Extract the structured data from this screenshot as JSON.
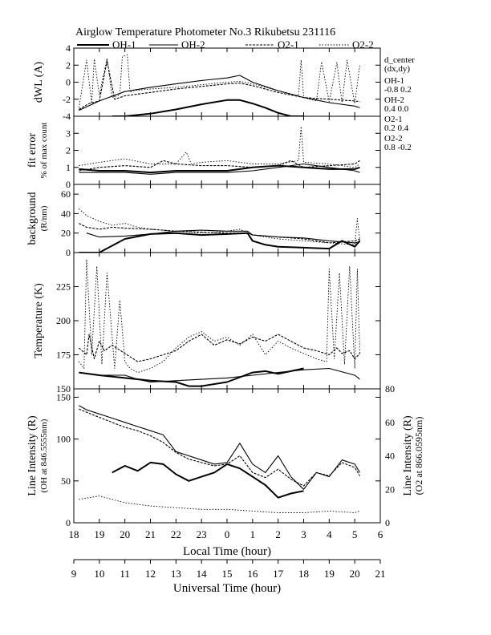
{
  "title": "Airglow Temperature Photometer No.3  Rikubetsu    231116",
  "legend": [
    {
      "name": "OH-1",
      "style": "solid-thick"
    },
    {
      "name": "OH-2",
      "style": "solid-thin"
    },
    {
      "name": "O2-1",
      "style": "dashed"
    },
    {
      "name": "O2-2",
      "style": "dotted"
    }
  ],
  "side_info": {
    "header": "d_center",
    "subheader": "(dx,dy)",
    "entries": [
      {
        "label": "OH-1",
        "value": "-0.8  0.2"
      },
      {
        "label": "OH-2",
        "value": "0.4   0.0"
      },
      {
        "label": "O2-1",
        "value": "0.2   0.4"
      },
      {
        "label": "O2-2",
        "value": "0.8   -0.2"
      }
    ]
  },
  "chart_data": {
    "type": "line",
    "x_unit": "Universal Time (hour)",
    "xlim": [
      9,
      21
    ],
    "xlabel_bottom": "Universal Time (hour)",
    "xlabel_top": "Local Time (hour)",
    "ut_ticks": [
      "9",
      "10",
      "11",
      "12",
      "13",
      "14",
      "15",
      "16",
      "17",
      "18",
      "19",
      "20",
      "21"
    ],
    "lt_ticks": [
      "18",
      "19",
      "20",
      "21",
      "22",
      "23",
      "0",
      "1",
      "2",
      "3",
      "4",
      "5",
      "6"
    ],
    "panels": [
      {
        "id": "dwl",
        "ylabel": [
          "dWL (A)"
        ],
        "ylim": [
          -4,
          4
        ],
        "yticks": [
          "-4",
          "-2",
          "0",
          "2",
          "4"
        ],
        "series": [
          {
            "name": "OH-1",
            "x": [
              10.5,
              11.0,
              12.0,
              13.0,
              14.0,
              15.0,
              15.5,
              16.0,
              16.5,
              17.0,
              17.5,
              18.0
            ],
            "y": [
              -4.0,
              -4.0,
              -3.7,
              -3.2,
              -2.6,
              -2.1,
              -2.1,
              -2.5,
              -3.0,
              -3.6,
              -4.0,
              -4.0
            ]
          },
          {
            "name": "OH-2",
            "x": [
              9.2,
              10.0,
              11.0,
              12.0,
              13.0,
              14.0,
              15.0,
              15.5,
              16.0,
              17.0,
              18.0,
              19.0,
              20.0,
              20.2
            ],
            "y": [
              -3.3,
              -2.2,
              -1.1,
              -0.6,
              -0.2,
              0.2,
              0.5,
              0.8,
              0.0,
              -1.0,
              -1.8,
              -2.4,
              -2.8,
              -3.0
            ]
          },
          {
            "name": "O2-1",
            "x": [
              9.2,
              9.6,
              10.0,
              10.3,
              10.6,
              11.0,
              12.0,
              13.0,
              14.0,
              15.0,
              15.5,
              16.0,
              17.0,
              18.0,
              19.0,
              20.0,
              20.2
            ],
            "y": [
              -3.2,
              -2.5,
              -2.2,
              2.5,
              -2.0,
              -1.6,
              -1.2,
              -0.8,
              -0.5,
              -0.2,
              -0.1,
              -0.4,
              -1.2,
              -1.8,
              -2.0,
              -2.2,
              -2.3
            ]
          },
          {
            "name": "O2-2",
            "x": [
              9.2,
              9.5,
              9.7,
              9.8,
              10.0,
              10.3,
              10.5,
              10.8,
              10.9,
              11.1,
              11.2,
              11.3,
              12.0,
              13.0,
              14.0,
              15.0,
              15.5,
              16.0,
              17.0,
              17.8,
              17.9,
              18.0,
              18.5,
              18.7,
              19.0,
              19.3,
              19.5,
              19.7,
              20.0,
              20.2
            ],
            "y": [
              -3.0,
              2.6,
              -2.5,
              2.7,
              -1.5,
              2.8,
              -1.8,
              -1.5,
              3.0,
              3.2,
              -1.2,
              -1.0,
              -0.8,
              -0.6,
              -0.3,
              0.0,
              0.1,
              -0.2,
              -1.0,
              -1.6,
              2.6,
              -1.8,
              -2.2,
              2.4,
              -2.3,
              2.3,
              -2.4,
              2.6,
              -2.5,
              2.0
            ]
          }
        ]
      },
      {
        "id": "fit",
        "ylabel": [
          "fit error",
          "% of max count"
        ],
        "ylim": [
          0,
          4
        ],
        "yticks": [
          "0",
          "1",
          "2",
          "3"
        ],
        "series": [
          {
            "name": "OH-1",
            "x": [
              9.2,
              10.0,
              11.0,
              12.0,
              13.0,
              14.0,
              15.0,
              16.0,
              17.0,
              18.0,
              19.0,
              20.0,
              20.2
            ],
            "y": [
              0.9,
              0.8,
              0.8,
              0.7,
              0.8,
              0.8,
              0.8,
              1.0,
              1.1,
              1.0,
              0.9,
              0.9,
              1.0
            ]
          },
          {
            "name": "OH-2",
            "x": [
              9.2,
              10.0,
              11.0,
              12.0,
              13.0,
              14.0,
              15.0,
              16.0,
              17.0,
              18.0,
              19.0,
              20.0,
              20.2
            ],
            "y": [
              0.7,
              0.7,
              0.7,
              0.6,
              0.7,
              0.7,
              0.7,
              0.8,
              1.0,
              1.2,
              1.0,
              0.8,
              0.7
            ]
          },
          {
            "name": "O2-1",
            "x": [
              9.2,
              10.0,
              11.0,
              12.0,
              12.5,
              13.0,
              14.0,
              15.0,
              16.0,
              17.0,
              17.5,
              18.0,
              19.0,
              20.0,
              20.2
            ],
            "y": [
              0.8,
              1.0,
              1.1,
              1.0,
              1.4,
              1.2,
              1.1,
              1.1,
              1.0,
              1.1,
              1.4,
              1.0,
              1.1,
              1.2,
              1.4
            ]
          },
          {
            "name": "O2-2",
            "x": [
              9.2,
              10.0,
              11.0,
              12.0,
              13.0,
              13.4,
              13.6,
              14.0,
              15.0,
              16.0,
              17.0,
              17.8,
              17.9,
              18.0,
              19.0,
              20.0,
              20.2
            ],
            "y": [
              1.1,
              1.3,
              1.5,
              1.2,
              1.2,
              1.9,
              1.2,
              1.3,
              1.4,
              1.2,
              1.2,
              1.4,
              3.4,
              1.3,
              1.2,
              1.0,
              1.2
            ]
          }
        ]
      },
      {
        "id": "bg",
        "ylabel": [
          "background",
          "(R/nm)"
        ],
        "ylim": [
          0,
          70
        ],
        "yticks": [
          "0",
          "20",
          "40",
          "60"
        ],
        "series": [
          {
            "name": "OH-1",
            "x": [
              9.2,
              10.0,
              11.0,
              12.0,
              13.0,
              14.0,
              15.0,
              15.8,
              16.0,
              16.5,
              17.0,
              18.0,
              19.0,
              19.5,
              20.0,
              20.2
            ],
            "y": [
              0,
              0,
              14,
              19,
              20,
              18,
              19,
              20,
              12,
              8,
              6,
              5,
              4,
              12,
              6,
              12
            ]
          },
          {
            "name": "OH-2",
            "x": [
              9.5,
              10.0,
              11.0,
              12.0,
              13.0,
              14.0,
              15.0,
              15.8,
              16.0,
              17.0,
              18.0,
              19.0,
              20.0,
              20.2
            ],
            "y": [
              20,
              16,
              17,
              19,
              22,
              23,
              22,
              22,
              18,
              16,
              15,
              12,
              10,
              11
            ]
          },
          {
            "name": "O2-1",
            "x": [
              9.2,
              9.5,
              10.0,
              10.5,
              11.0,
              12.0,
              13.0,
              14.0,
              15.0,
              15.8,
              16.0,
              17.0,
              18.0,
              19.0,
              20.0,
              20.2
            ],
            "y": [
              30,
              26,
              24,
              26,
              25,
              24,
              22,
              21,
              20,
              20,
              18,
              16,
              14,
              10,
              12,
              14
            ]
          },
          {
            "name": "O2-2",
            "x": [
              9.2,
              9.5,
              10.0,
              10.5,
              11.0,
              11.5,
              12.0,
              13.0,
              14.0,
              15.0,
              15.5,
              16.0,
              17.0,
              18.0,
              19.0,
              20.0,
              20.1,
              20.2
            ],
            "y": [
              45,
              38,
              32,
              28,
              30,
              26,
              24,
              22,
              20,
              22,
              24,
              18,
              14,
              12,
              10,
              8,
              35,
              12
            ]
          }
        ]
      },
      {
        "id": "temp",
        "ylabel": [
          "Temperature (K)"
        ],
        "ylim": [
          150,
          250
        ],
        "yticks": [
          "150",
          "175",
          "200",
          "225"
        ],
        "series": [
          {
            "name": "OH-1",
            "x": [
              9.2,
              10.0,
              11.0,
              12.0,
              13.0,
              13.5,
              14.0,
              15.0,
              16.0,
              16.5,
              17.0,
              18.0
            ],
            "y": [
              162,
              160,
              158,
              156,
              155,
              152,
              152,
              155,
              162,
              163,
              161,
              165
            ]
          },
          {
            "name": "OH-2",
            "x": [
              9.2,
              10.0,
              11.0,
              11.5,
              12.0,
              13.0,
              14.0,
              15.0,
              16.0,
              17.0,
              18.0,
              19.0,
              20.0,
              20.2
            ],
            "y": [
              162,
              160,
              160,
              157,
              155,
              156,
              157,
              158,
              160,
              162,
              164,
              165,
              160,
              157
            ]
          },
          {
            "name": "O2-1",
            "x": [
              9.2,
              9.5,
              9.6,
              9.8,
              10.0,
              10.2,
              10.5,
              11.0,
              11.5,
              12.0,
              13.0,
              13.5,
              14.0,
              14.5,
              15.0,
              15.5,
              16.0,
              16.5,
              17.0,
              17.5,
              18.0,
              18.5,
              19.0,
              19.3,
              19.5,
              19.8,
              20.0,
              20.2
            ],
            "y": [
              180,
              175,
              190,
              172,
              185,
              178,
              182,
              176,
              170,
              172,
              178,
              185,
              190,
              182,
              186,
              183,
              188,
              185,
              190,
              185,
              180,
              178,
              175,
              180,
              176,
              178,
              172,
              176
            ]
          },
          {
            "name": "O2-2",
            "x": [
              9.2,
              9.4,
              9.5,
              9.7,
              9.9,
              10.1,
              10.3,
              10.6,
              10.8,
              11.0,
              11.2,
              11.5,
              12.0,
              12.5,
              13.0,
              13.5,
              14.0,
              14.5,
              15.0,
              15.5,
              16.0,
              16.5,
              17.0,
              17.5,
              18.0,
              18.5,
              18.9,
              19.0,
              19.2,
              19.4,
              19.6,
              19.8,
              20.0,
              20.1,
              20.2
            ],
            "y": [
              170,
              165,
              245,
              175,
              240,
              168,
              235,
              165,
              215,
              170,
              165,
              162,
              165,
              170,
              180,
              188,
              192,
              185,
              188,
              182,
              190,
              175,
              185,
              180,
              176,
              172,
              170,
              238,
              172,
              235,
              168,
              240,
              165,
              238,
              176
            ]
          }
        ]
      },
      {
        "id": "int",
        "ylabel": [
          "Line Intensity (R)",
          "(OH at 846.5555nm)"
        ],
        "ylim": [
          0,
          160
        ],
        "yticks": [
          "0",
          "50",
          "100",
          "150"
        ],
        "ylabel_right": [
          "Line Intensity (R)",
          "(O2 at 866.0595nm)"
        ],
        "ylim_right": [
          0,
          80
        ],
        "yticks_right": [
          "0",
          "20",
          "40",
          "60",
          "80"
        ],
        "series": [
          {
            "name": "OH-1",
            "axis": "left",
            "x": [
              10.5,
              11.0,
              11.5,
              12.0,
              12.5,
              13.0,
              13.5,
              14.0,
              14.5,
              15.0,
              15.5,
              16.0,
              16.5,
              17.0,
              17.5,
              18.0
            ],
            "y": [
              60,
              68,
              62,
              72,
              70,
              58,
              50,
              55,
              60,
              70,
              65,
              55,
              45,
              30,
              35,
              38
            ]
          },
          {
            "name": "OH-2",
            "axis": "left",
            "x": [
              9.2,
              9.5,
              10.0,
              10.5,
              11.0,
              11.5,
              12.0,
              12.5,
              13.0,
              13.5,
              14.0,
              14.5,
              15.0,
              15.5,
              16.0,
              16.5,
              17.0,
              17.5,
              18.0,
              18.5,
              19.0,
              19.5,
              20.0,
              20.2
            ],
            "y": [
              140,
              135,
              130,
              125,
              120,
              115,
              110,
              105,
              85,
              80,
              75,
              70,
              72,
              95,
              70,
              60,
              80,
              55,
              40,
              60,
              55,
              75,
              70,
              60
            ]
          },
          {
            "name": "O2-1",
            "axis": "right",
            "x": [
              9.2,
              9.5,
              10.0,
              10.5,
              11.0,
              11.5,
              12.0,
              12.5,
              13.0,
              13.5,
              14.0,
              14.5,
              15.0,
              15.5,
              16.0,
              16.5,
              17.0,
              17.5,
              18.0,
              18.5,
              19.0,
              19.5,
              20.0,
              20.2
            ],
            "y": [
              68,
              66,
              63,
              60,
              57,
              55,
              52,
              48,
              42,
              38,
              36,
              34,
              35,
              40,
              30,
              27,
              32,
              26,
              22,
              30,
              28,
              36,
              33,
              28
            ]
          },
          {
            "name": "O2-2",
            "axis": "right",
            "x": [
              9.2,
              10.0,
              11.0,
              12.0,
              13.0,
              14.0,
              15.0,
              16.0,
              17.0,
              18.0,
              19.0,
              20.0,
              20.2
            ],
            "y": [
              14,
              16,
              12,
              10,
              9,
              8,
              8,
              7,
              6,
              6,
              7,
              6,
              7
            ]
          }
        ]
      }
    ]
  }
}
